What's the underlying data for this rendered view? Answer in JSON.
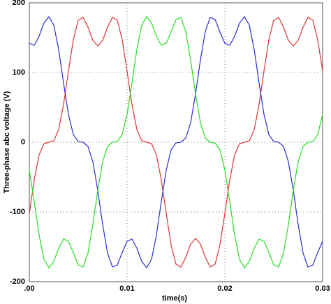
{
  "chart_data": {
    "type": "line",
    "xlabel": "time(s)",
    "ylabel": "Three-phase abc voltage (V)",
    "x": [
      0,
      0.0005,
      0.001,
      0.0015,
      0.002,
      0.0025,
      0.003,
      0.0035,
      0.004,
      0.0045,
      0.005,
      0.0055,
      0.006,
      0.0065,
      0.007,
      0.0075,
      0.008,
      0.0085,
      0.009,
      0.0095,
      0.01,
      0.0105,
      0.011,
      0.0115,
      0.012,
      0.0125,
      0.013,
      0.0135,
      0.014,
      0.0145,
      0.015,
      0.0155,
      0.016,
      0.0165,
      0.017,
      0.0175,
      0.018,
      0.0185,
      0.019,
      0.0195,
      0.02,
      0.0205,
      0.021,
      0.0215,
      0.022,
      0.0225,
      0.023,
      0.0235,
      0.024,
      0.0245,
      0.025,
      0.0255,
      0.026,
      0.0265,
      0.027,
      0.0275,
      0.028,
      0.0285,
      0.029,
      0.0295,
      0.03
    ],
    "series": [
      {
        "color": "#e03333",
        "values": [
          -102,
          -54,
          -18,
          -2,
          0,
          2,
          18,
          54,
          102,
          147,
          175,
          179,
          165,
          146,
          138,
          146,
          165,
          179,
          175,
          147,
          102,
          54,
          18,
          2,
          0,
          -2,
          -18,
          -54,
          -102,
          -147,
          -175,
          -179,
          -165,
          -146,
          -138,
          -146,
          -165,
          -179,
          -175,
          -147,
          -102,
          -54,
          -18,
          -2,
          0,
          2,
          18,
          54,
          102,
          147,
          175,
          179,
          165,
          146,
          138,
          146,
          165,
          179,
          175,
          147,
          102
        ]
      },
      {
        "color": "#2b2bd6",
        "values": [
          142,
          139,
          152,
          171,
          180,
          168,
          133,
          85,
          40,
          11,
          1,
          0,
          -6,
          -28,
          -69,
          -118,
          -159,
          -179,
          -176,
          -158,
          -142,
          -139,
          -152,
          -171,
          -180,
          -168,
          -133,
          -85,
          -40,
          -11,
          -1,
          0,
          6,
          28,
          69,
          118,
          159,
          179,
          176,
          158,
          142,
          139,
          152,
          171,
          180,
          168,
          133,
          85,
          40,
          11,
          1,
          0,
          -6,
          -28,
          -69,
          -118,
          -159,
          -179,
          -176,
          -158,
          -142
        ]
      },
      {
        "color": "#22e022",
        "values": [
          -40,
          -85,
          -133,
          -168,
          -180,
          -171,
          -152,
          -139,
          -142,
          -158,
          -176,
          -179,
          -159,
          -118,
          -69,
          -28,
          -6,
          0,
          1,
          11,
          40,
          85,
          133,
          168,
          180,
          171,
          152,
          139,
          142,
          158,
          176,
          179,
          159,
          118,
          69,
          28,
          6,
          0,
          -1,
          -11,
          -40,
          -85,
          -133,
          -168,
          -180,
          -171,
          -152,
          -139,
          -142,
          -158,
          -176,
          -179,
          -159,
          -118,
          -69,
          -28,
          -6,
          0,
          1,
          11,
          40
        ]
      }
    ],
    "xlim": [
      0,
      0.03
    ],
    "xticks": [
      {
        "value": 0,
        "label": ".00"
      },
      0.01,
      0.02,
      0.03
    ],
    "ylim": [
      -200,
      200
    ],
    "yticks": [
      200,
      100,
      0,
      -100,
      -200
    ],
    "grid": true
  }
}
